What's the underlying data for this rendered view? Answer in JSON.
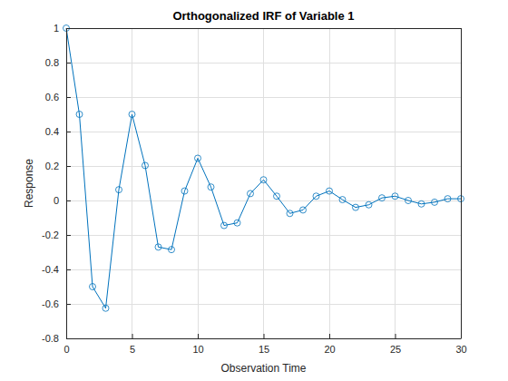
{
  "chart_data": {
    "type": "line",
    "title": "Orthogonalized IRF of Variable 1",
    "x_label": "Observation Time",
    "y_label": "Response",
    "x": [
      0,
      1,
      2,
      3,
      4,
      5,
      6,
      7,
      8,
      9,
      10,
      11,
      12,
      13,
      14,
      15,
      16,
      17,
      18,
      19,
      20,
      21,
      22,
      23,
      24,
      25,
      26,
      27,
      28,
      29,
      30
    ],
    "values": [
      1.0,
      0.5,
      -0.5,
      -0.625,
      0.0625,
      0.5,
      0.203,
      -0.27,
      -0.285,
      0.055,
      0.245,
      0.078,
      -0.145,
      -0.13,
      0.04,
      0.12,
      0.025,
      -0.075,
      -0.055,
      0.025,
      0.055,
      0.005,
      -0.04,
      -0.025,
      0.015,
      0.025,
      0.0,
      -0.02,
      -0.01,
      0.01,
      0.01
    ],
    "color": "#0072bd",
    "marker": "circle",
    "line_style": "solid",
    "xlim": [
      0,
      30
    ],
    "xticks": [
      0,
      5,
      10,
      15,
      20,
      25,
      30
    ],
    "ylim": [
      -0.8,
      1
    ],
    "yticks": [
      -0.8,
      -0.6,
      -0.4,
      -0.2,
      0,
      0.2,
      0.4,
      0.6,
      0.8,
      1
    ],
    "grid": true
  }
}
